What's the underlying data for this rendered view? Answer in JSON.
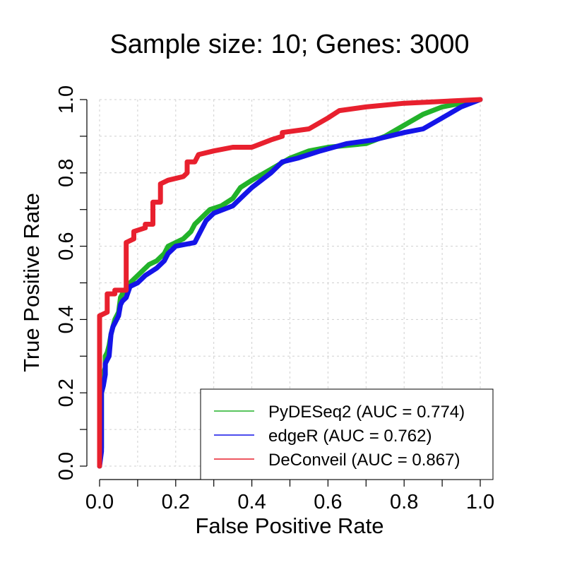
{
  "chart_data": {
    "type": "line",
    "title": "Sample size: 10; Genes: 3000",
    "xlabel": "False Positive Rate",
    "ylabel": "True Positive Rate",
    "xlim": [
      0,
      1
    ],
    "ylim": [
      0,
      1
    ],
    "xticks": [
      "0.0",
      "0.2",
      "0.4",
      "0.6",
      "0.8",
      "1.0"
    ],
    "yticks": [
      "0.0",
      "0.2",
      "0.4",
      "0.6",
      "0.8",
      "1.0"
    ],
    "grid": true,
    "legend_position": "bottom-right",
    "series": [
      {
        "name": "PyDESeq2 (AUC = 0.774)",
        "color": "#22b22a",
        "points": [
          [
            0,
            0
          ],
          [
            0,
            0.03
          ],
          [
            0.005,
            0.05
          ],
          [
            0.005,
            0.2
          ],
          [
            0.01,
            0.22
          ],
          [
            0.01,
            0.25
          ],
          [
            0.015,
            0.27
          ],
          [
            0.015,
            0.3
          ],
          [
            0.02,
            0.31
          ],
          [
            0.025,
            0.33
          ],
          [
            0.03,
            0.36
          ],
          [
            0.035,
            0.38
          ],
          [
            0.04,
            0.4
          ],
          [
            0.05,
            0.42
          ],
          [
            0.055,
            0.46
          ],
          [
            0.06,
            0.47
          ],
          [
            0.07,
            0.48
          ],
          [
            0.08,
            0.5
          ],
          [
            0.1,
            0.52
          ],
          [
            0.13,
            0.55
          ],
          [
            0.15,
            0.56
          ],
          [
            0.17,
            0.58
          ],
          [
            0.18,
            0.6
          ],
          [
            0.2,
            0.61
          ],
          [
            0.22,
            0.62
          ],
          [
            0.24,
            0.64
          ],
          [
            0.25,
            0.66
          ],
          [
            0.27,
            0.68
          ],
          [
            0.29,
            0.7
          ],
          [
            0.32,
            0.71
          ],
          [
            0.35,
            0.73
          ],
          [
            0.37,
            0.76
          ],
          [
            0.4,
            0.78
          ],
          [
            0.45,
            0.81
          ],
          [
            0.5,
            0.84
          ],
          [
            0.55,
            0.86
          ],
          [
            0.6,
            0.87
          ],
          [
            0.7,
            0.88
          ],
          [
            0.75,
            0.9
          ],
          [
            0.8,
            0.93
          ],
          [
            0.85,
            0.96
          ],
          [
            0.9,
            0.98
          ],
          [
            1,
            1
          ]
        ]
      },
      {
        "name": "edgeR (AUC = 0.762)",
        "color": "#1414e8",
        "points": [
          [
            0,
            0
          ],
          [
            0.005,
            0.04
          ],
          [
            0.005,
            0.2
          ],
          [
            0.01,
            0.22
          ],
          [
            0.015,
            0.25
          ],
          [
            0.015,
            0.28
          ],
          [
            0.025,
            0.3
          ],
          [
            0.03,
            0.36
          ],
          [
            0.035,
            0.38
          ],
          [
            0.04,
            0.39
          ],
          [
            0.05,
            0.41
          ],
          [
            0.055,
            0.44
          ],
          [
            0.06,
            0.45
          ],
          [
            0.07,
            0.46
          ],
          [
            0.08,
            0.49
          ],
          [
            0.1,
            0.5
          ],
          [
            0.12,
            0.52
          ],
          [
            0.15,
            0.54
          ],
          [
            0.17,
            0.56
          ],
          [
            0.18,
            0.58
          ],
          [
            0.19,
            0.59
          ],
          [
            0.2,
            0.6
          ],
          [
            0.25,
            0.61
          ],
          [
            0.26,
            0.63
          ],
          [
            0.27,
            0.65
          ],
          [
            0.28,
            0.67
          ],
          [
            0.3,
            0.69
          ],
          [
            0.35,
            0.71
          ],
          [
            0.38,
            0.74
          ],
          [
            0.4,
            0.76
          ],
          [
            0.45,
            0.8
          ],
          [
            0.48,
            0.83
          ],
          [
            0.52,
            0.84
          ],
          [
            0.58,
            0.86
          ],
          [
            0.65,
            0.88
          ],
          [
            0.72,
            0.89
          ],
          [
            0.8,
            0.91
          ],
          [
            0.85,
            0.92
          ],
          [
            0.9,
            0.95
          ],
          [
            0.95,
            0.98
          ],
          [
            1,
            1
          ]
        ]
      },
      {
        "name": "DeConveil (AUC = 0.867)",
        "color": "#e8202e",
        "points": [
          [
            0,
            0
          ],
          [
            0,
            0.41
          ],
          [
            0.02,
            0.42
          ],
          [
            0.02,
            0.47
          ],
          [
            0.04,
            0.47
          ],
          [
            0.04,
            0.48
          ],
          [
            0.07,
            0.48
          ],
          [
            0.07,
            0.61
          ],
          [
            0.09,
            0.62
          ],
          [
            0.09,
            0.64
          ],
          [
            0.12,
            0.65
          ],
          [
            0.12,
            0.66
          ],
          [
            0.14,
            0.66
          ],
          [
            0.14,
            0.72
          ],
          [
            0.16,
            0.72
          ],
          [
            0.16,
            0.77
          ],
          [
            0.18,
            0.78
          ],
          [
            0.22,
            0.79
          ],
          [
            0.23,
            0.8
          ],
          [
            0.23,
            0.83
          ],
          [
            0.25,
            0.83
          ],
          [
            0.26,
            0.85
          ],
          [
            0.3,
            0.86
          ],
          [
            0.35,
            0.87
          ],
          [
            0.4,
            0.87
          ],
          [
            0.45,
            0.89
          ],
          [
            0.48,
            0.9
          ],
          [
            0.48,
            0.91
          ],
          [
            0.55,
            0.92
          ],
          [
            0.6,
            0.95
          ],
          [
            0.63,
            0.97
          ],
          [
            0.7,
            0.98
          ],
          [
            0.8,
            0.99
          ],
          [
            0.9,
            0.995
          ],
          [
            1,
            1
          ]
        ]
      }
    ]
  }
}
